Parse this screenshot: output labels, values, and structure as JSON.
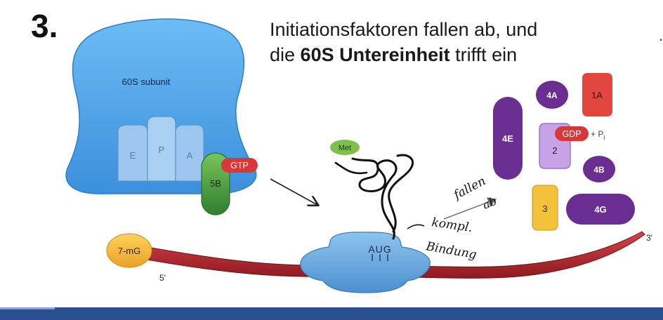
{
  "slide": {
    "number": "3.",
    "heading_line1": "Initiationsfaktoren fallen ab, und",
    "heading_line2_pre": "die ",
    "heading_line2_bold": "60S Untereinheit",
    "heading_line2_post": " trifft ein",
    "edge_mark": "."
  },
  "ribosome": {
    "subunit_label": "60S subunit",
    "sites": [
      "E",
      "P",
      "A"
    ]
  },
  "factors": {
    "eif5b": "5B",
    "gtp": "GTP",
    "met": "Met",
    "cap": "7-mG",
    "five_prime": "5'",
    "three_prime": "3'",
    "start_codon": "AUG",
    "released": {
      "f4e": "4E",
      "f4a": "4A",
      "f1a": "1A",
      "f2": "2",
      "gdp": "GDP",
      "pi": "+ P",
      "pi_sub": "i",
      "f4b": "4B",
      "f3": "3",
      "f4g": "4G"
    }
  },
  "annotations": {
    "fallen_line1": "fallen",
    "fallen_line2": "ab",
    "kompl_line1": "kompl.",
    "kompl_line2": "Bindung"
  },
  "colors": {
    "ribosome_blue": "#4aa7ef",
    "site_blue": "#9cc6ee",
    "mrna_red": "#c0282e",
    "cap_orange": "#f3b73d",
    "factor_purple": "#6a2d91",
    "factor_red": "#e2463e",
    "factor_lilac": "#c7a3e6",
    "factor_yellow": "#f4c13b",
    "eif5b_green": "#3f9b3f",
    "footer_blue": "#2a4f8e"
  }
}
